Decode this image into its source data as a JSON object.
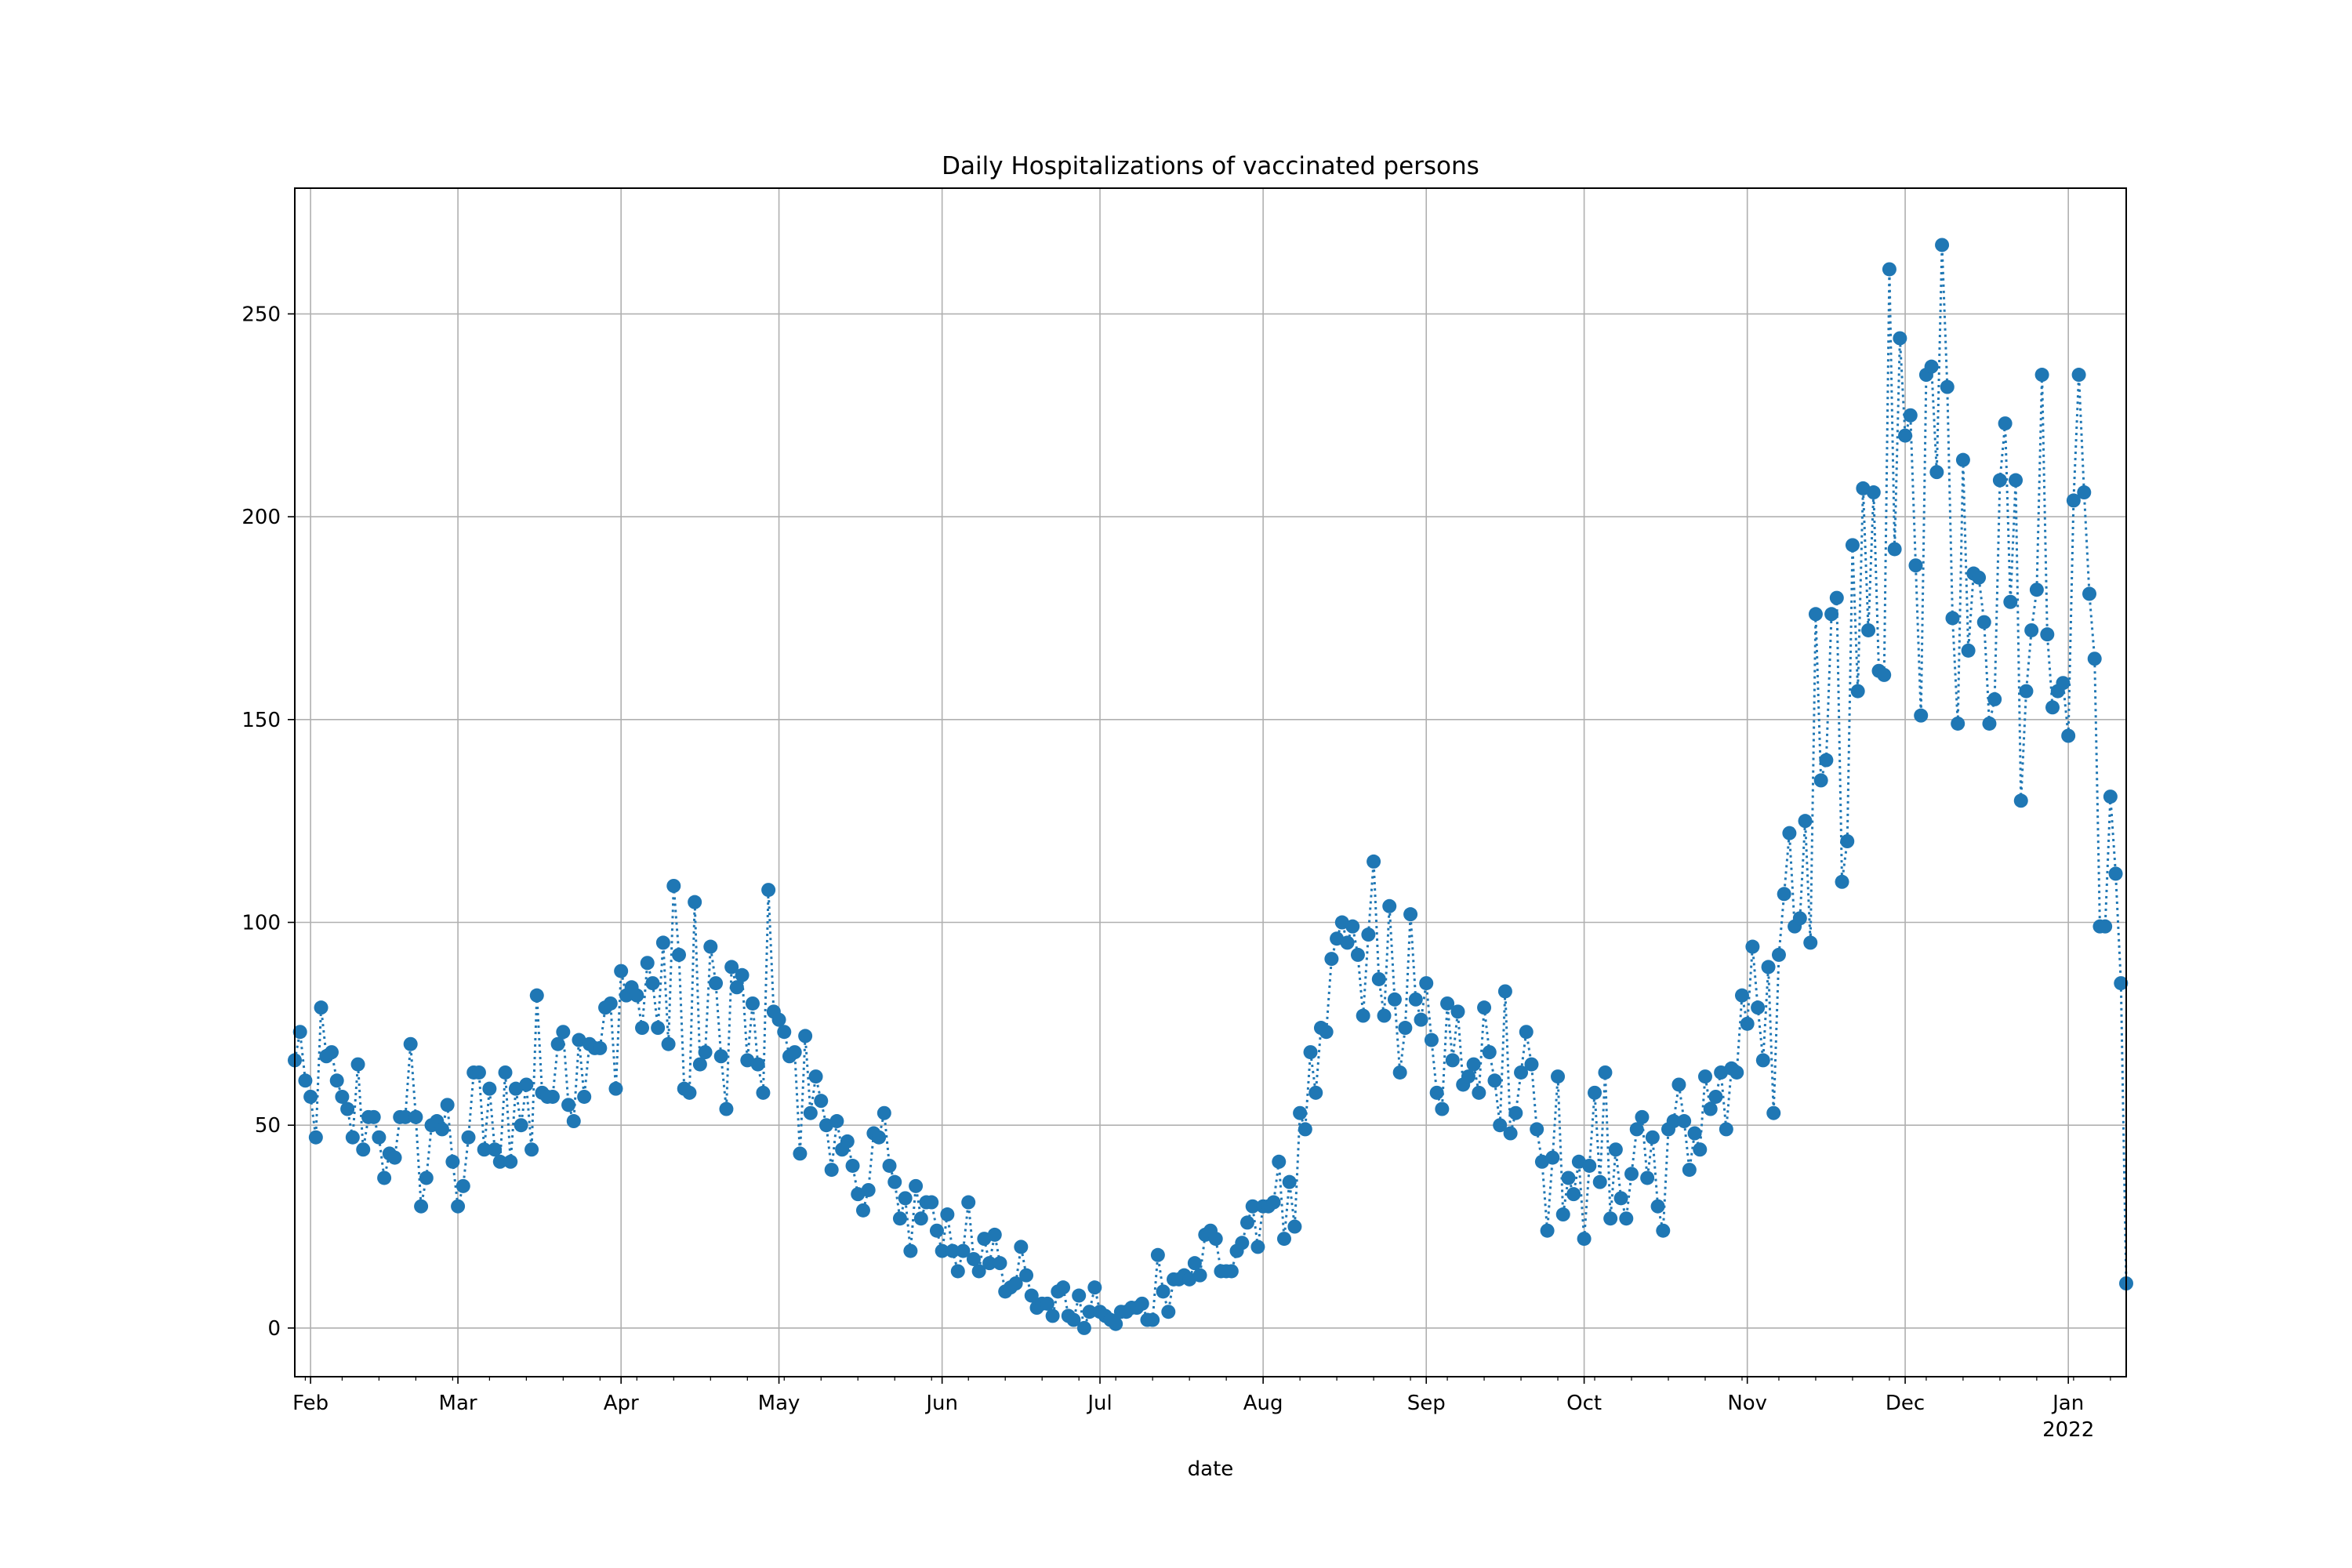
{
  "chart_data": {
    "type": "line",
    "title": "Daily Hospitalizations of vaccinated persons",
    "xlabel": "date",
    "ylabel": "",
    "x_start": "2021-01-29",
    "x_end": "2022-01-12",
    "ylim": [
      -12,
      281
    ],
    "grid": true,
    "yticks": [
      0,
      50,
      100,
      150,
      200,
      250
    ],
    "xticks": [
      {
        "date": "2021-02-01",
        "label": "Feb",
        "sublabel": ""
      },
      {
        "date": "2021-03-01",
        "label": "Mar",
        "sublabel": ""
      },
      {
        "date": "2021-04-01",
        "label": "Apr",
        "sublabel": ""
      },
      {
        "date": "2021-05-01",
        "label": "May",
        "sublabel": ""
      },
      {
        "date": "2021-06-01",
        "label": "Jun",
        "sublabel": ""
      },
      {
        "date": "2021-07-01",
        "label": "Jul",
        "sublabel": ""
      },
      {
        "date": "2021-08-01",
        "label": "Aug",
        "sublabel": ""
      },
      {
        "date": "2021-09-01",
        "label": "Sep",
        "sublabel": ""
      },
      {
        "date": "2021-10-01",
        "label": "Oct",
        "sublabel": ""
      },
      {
        "date": "2021-11-01",
        "label": "Nov",
        "sublabel": ""
      },
      {
        "date": "2021-12-01",
        "label": "Dec",
        "sublabel": ""
      },
      {
        "date": "2022-01-01",
        "label": "Jan",
        "sublabel": "2022"
      }
    ],
    "series": [
      {
        "color": "#1f77b4",
        "line_style": "dotted",
        "marker": "circle",
        "values": [
          66,
          73,
          61,
          57,
          47,
          79,
          67,
          68,
          61,
          57,
          54,
          47,
          65,
          44,
          52,
          52,
          47,
          37,
          43,
          42,
          52,
          52,
          70,
          52,
          30,
          37,
          50,
          51,
          49,
          55,
          41,
          30,
          35,
          47,
          63,
          63,
          44,
          59,
          44,
          41,
          63,
          41,
          59,
          50,
          60,
          44,
          82,
          58,
          57,
          57,
          70,
          73,
          55,
          51,
          71,
          57,
          70,
          69,
          69,
          79,
          80,
          59,
          88,
          82,
          84,
          82,
          74,
          90,
          85,
          74,
          95,
          70,
          109,
          92,
          59,
          58,
          105,
          65,
          68,
          94,
          85,
          67,
          54,
          89,
          84,
          87,
          66,
          80,
          65,
          58,
          108,
          78,
          76,
          73,
          67,
          68,
          43,
          72,
          53,
          62,
          56,
          50,
          39,
          51,
          44,
          46,
          40,
          33,
          29,
          34,
          48,
          47,
          53,
          40,
          36,
          27,
          32,
          19,
          35,
          27,
          31,
          31,
          24,
          19,
          28,
          19,
          14,
          19,
          31,
          17,
          14,
          22,
          16,
          23,
          16,
          9,
          10,
          11,
          20,
          13,
          8,
          5,
          6,
          6,
          3,
          9,
          10,
          3,
          2,
          8,
          0,
          4,
          10,
          4,
          3,
          2,
          1,
          4,
          4,
          5,
          5,
          6,
          2,
          2,
          18,
          9,
          4,
          12,
          12,
          13,
          12,
          16,
          13,
          23,
          24,
          22,
          14,
          14,
          14,
          19,
          21,
          26,
          30,
          20,
          30,
          30,
          31,
          41,
          22,
          36,
          25,
          53,
          49,
          68,
          58,
          74,
          73,
          91,
          96,
          100,
          95,
          99,
          92,
          77,
          97,
          115,
          86,
          77,
          104,
          81,
          63,
          74,
          102,
          81,
          76,
          85,
          71,
          58,
          54,
          80,
          66,
          78,
          60,
          62,
          65,
          58,
          79,
          68,
          61,
          50,
          83,
          48,
          53,
          63,
          73,
          65,
          49,
          41,
          24,
          42,
          62,
          28,
          37,
          33,
          41,
          22,
          40,
          58,
          36,
          63,
          27,
          44,
          32,
          27,
          38,
          49,
          52,
          37,
          47,
          30,
          24,
          49,
          51,
          60,
          51,
          39,
          48,
          44,
          62,
          54,
          57,
          63,
          49,
          64,
          63,
          82,
          75,
          94,
          79,
          66,
          89,
          53,
          92,
          107,
          122,
          99,
          101,
          125,
          95,
          176,
          135,
          140,
          176,
          180,
          110,
          120,
          193,
          157,
          207,
          172,
          206,
          162,
          161,
          261,
          192,
          244,
          220,
          225,
          188,
          151,
          235,
          237,
          211,
          267,
          232,
          175,
          149,
          214,
          167,
          186,
          185,
          174,
          149,
          155,
          209,
          223,
          179,
          209,
          130,
          157,
          172,
          182,
          235,
          171,
          153,
          157,
          159,
          146,
          204,
          235,
          206,
          181,
          165,
          99,
          99,
          131,
          112,
          85,
          11
        ]
      }
    ]
  }
}
